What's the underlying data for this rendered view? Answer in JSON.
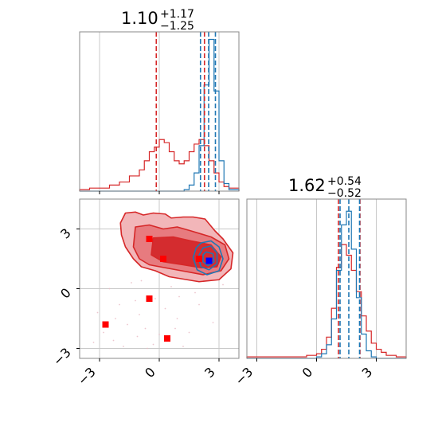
{
  "chart_data": [
    {
      "type": "histogram",
      "panel": "top-left marginal",
      "title": {
        "value": "1.10",
        "plus": "+1.17",
        "minus": "−1.25"
      },
      "xlim": [
        -4.0,
        4.0
      ],
      "grid": true,
      "x": [
        -4.0,
        -3.5,
        -3.0,
        -2.5,
        -2.0,
        -1.5,
        -1.0,
        -0.75,
        -0.5,
        -0.25,
        0.0,
        0.25,
        0.5,
        0.75,
        1.0,
        1.25,
        1.5,
        1.75,
        2.0,
        2.25,
        2.5,
        2.75,
        3.0,
        3.25,
        3.5,
        4.0
      ],
      "series": [
        {
          "color": "#d62728",
          "values": [
            0.01,
            0.02,
            0.02,
            0.04,
            0.06,
            0.1,
            0.14,
            0.2,
            0.26,
            0.29,
            0.34,
            0.32,
            0.26,
            0.2,
            0.18,
            0.2,
            0.26,
            0.31,
            0.34,
            0.3,
            0.2,
            0.12,
            0.06,
            0.03,
            0.02,
            0.0
          ]
        },
        {
          "color": "#1f77b4",
          "values": [
            0,
            0,
            0,
            0,
            0,
            0,
            0,
            0,
            0,
            0,
            0,
            0,
            0,
            0,
            0,
            0.01,
            0.04,
            0.12,
            0.3,
            0.7,
            1.0,
            0.66,
            0.2,
            0.05,
            0.01,
            0
          ]
        }
      ],
      "vlines": [
        {
          "x": -0.15,
          "color": "#d62728"
        },
        {
          "x": 2.27,
          "color": "#d62728"
        },
        {
          "x": 2.07,
          "color": "#1f77b4"
        },
        {
          "x": 2.48,
          "color": "#1f77b4"
        },
        {
          "x": 2.82,
          "color": "#1f77b4"
        }
      ]
    },
    {
      "type": "contour",
      "panel": "bottom-left joint",
      "xlim": [
        -4.0,
        4.0
      ],
      "ylim": [
        -3.5,
        4.5
      ],
      "xticks": [
        "−3",
        "0",
        "3"
      ],
      "yticks": [
        "−3",
        "0",
        "3"
      ],
      "grid": true,
      "red_contours": [
        {
          "level": "outer",
          "fill": "#f2b6b9",
          "points": [
            [
              -1.7,
              3.8
            ],
            [
              -1.2,
              3.85
            ],
            [
              -0.8,
              3.7
            ],
            [
              -0.3,
              3.8
            ],
            [
              0.3,
              3.75
            ],
            [
              0.6,
              3.55
            ],
            [
              1.2,
              3.6
            ],
            [
              1.7,
              3.6
            ],
            [
              2.3,
              3.5
            ],
            [
              2.8,
              2.9
            ],
            [
              3.2,
              2.5
            ],
            [
              3.7,
              1.8
            ],
            [
              3.6,
              1.0
            ],
            [
              3.0,
              0.45
            ],
            [
              2.0,
              0.35
            ],
            [
              1.4,
              0.45
            ],
            [
              0.5,
              0.6
            ],
            [
              -0.2,
              0.9
            ],
            [
              -0.9,
              1.1
            ],
            [
              -1.3,
              1.5
            ],
            [
              -1.7,
              2.1
            ],
            [
              -1.9,
              2.7
            ],
            [
              -1.95,
              3.3
            ]
          ]
        },
        {
          "level": "middle",
          "fill": "#e77b7f",
          "points": [
            [
              -1.2,
              3.1
            ],
            [
              -0.5,
              3.2
            ],
            [
              0.2,
              3.0
            ],
            [
              0.9,
              3.1
            ],
            [
              1.6,
              2.9
            ],
            [
              2.6,
              2.6
            ],
            [
              3.3,
              2.2
            ],
            [
              3.5,
              1.5
            ],
            [
              3.1,
              0.9
            ],
            [
              2.2,
              0.7
            ],
            [
              1.4,
              0.85
            ],
            [
              0.3,
              1.05
            ],
            [
              -0.5,
              1.2
            ],
            [
              -1.0,
              1.5
            ],
            [
              -1.3,
              2.1
            ]
          ]
        },
        {
          "level": "inner",
          "fill": "#d42c2f",
          "points": [
            [
              -0.3,
              2.55
            ],
            [
              0.7,
              2.6
            ],
            [
              1.6,
              2.4
            ],
            [
              2.6,
              2.2
            ],
            [
              3.1,
              1.6
            ],
            [
              2.9,
              1.1
            ],
            [
              2.1,
              1.05
            ],
            [
              1.2,
              1.2
            ],
            [
              0.2,
              1.35
            ],
            [
              -0.4,
              1.7
            ]
          ]
        }
      ],
      "blue_contours": [
        {
          "points": [
            [
              2.1,
              2.3
            ],
            [
              2.6,
              2.4
            ],
            [
              3.0,
              2.1
            ],
            [
              3.2,
              1.5
            ],
            [
              3.0,
              0.9
            ],
            [
              2.4,
              0.7
            ],
            [
              1.9,
              0.95
            ],
            [
              1.7,
              1.55
            ],
            [
              1.85,
              2.05
            ]
          ]
        },
        {
          "points": [
            [
              2.2,
              2.05
            ],
            [
              2.6,
              2.15
            ],
            [
              2.9,
              1.8
            ],
            [
              2.9,
              1.25
            ],
            [
              2.5,
              0.95
            ],
            [
              2.1,
              1.1
            ],
            [
              1.95,
              1.6
            ]
          ]
        },
        {
          "points": [
            [
              2.35,
              1.85
            ],
            [
              2.7,
              1.75
            ],
            [
              2.75,
              1.35
            ],
            [
              2.45,
              1.15
            ],
            [
              2.2,
              1.35
            ],
            [
              2.2,
              1.7
            ]
          ]
        }
      ],
      "markers": [
        {
          "x": -0.5,
          "y": 2.5,
          "color": "#ff0000"
        },
        {
          "x": 0.2,
          "y": 1.5,
          "color": "#ff0000"
        },
        {
          "x": 2.0,
          "y": 1.5,
          "color": "#ff0000"
        },
        {
          "x": -0.5,
          "y": -0.5,
          "color": "#ff0000"
        },
        {
          "x": -2.7,
          "y": -1.8,
          "color": "#ff0000"
        },
        {
          "x": 0.4,
          "y": -2.5,
          "color": "#ff0000"
        },
        {
          "x": 2.5,
          "y": 1.4,
          "color": "#0000ff"
        }
      ],
      "scatter_samples": [
        [
          -2.3,
          -2.6
        ],
        [
          -1.0,
          -1.3
        ],
        [
          -0.3,
          -2.8
        ],
        [
          0.9,
          -1.5
        ],
        [
          -1.4,
          0.3
        ],
        [
          -2.0,
          -0.8
        ],
        [
          1.0,
          -0.4
        ],
        [
          -0.7,
          -2.0
        ],
        [
          -2.8,
          -2.2
        ],
        [
          0.6,
          0.1
        ],
        [
          -1.6,
          -1.8
        ],
        [
          2.0,
          -0.8
        ],
        [
          -0.2,
          -0.5
        ],
        [
          1.5,
          -2.2
        ],
        [
          -3.1,
          -1.2
        ],
        [
          -0.9,
          0.4
        ],
        [
          0.3,
          -1.0
        ],
        [
          -1.8,
          -2.9
        ],
        [
          1.2,
          -2.9
        ],
        [
          -2.5,
          0.0
        ],
        [
          3.2,
          0.2
        ],
        [
          -1.2,
          -0.6
        ],
        [
          2.7,
          -1.7
        ],
        [
          -0.6,
          -3.0
        ],
        [
          0.8,
          -2.0
        ],
        [
          -2.2,
          -1.5
        ],
        [
          1.8,
          -0.2
        ],
        [
          -3.3,
          -2.7
        ],
        [
          0.0,
          -2.3
        ],
        [
          -1.1,
          -2.4
        ]
      ]
    },
    {
      "type": "histogram",
      "panel": "bottom-right marginal",
      "title": {
        "value": "1.62",
        "plus": "+0.54",
        "minus": "−0.52"
      },
      "xlim": [
        -3.5,
        4.5
      ],
      "xticks": [
        "−3",
        "0",
        "3"
      ],
      "grid": true,
      "x": [
        -3.5,
        -3.0,
        -2.5,
        -2.0,
        -1.5,
        -1.0,
        -0.5,
        0.0,
        0.25,
        0.5,
        0.75,
        1.0,
        1.25,
        1.5,
        1.75,
        2.0,
        2.25,
        2.5,
        2.75,
        3.0,
        3.25,
        3.5,
        4.0,
        4.5
      ],
      "series": [
        {
          "color": "#d62728",
          "values": [
            0.01,
            0.01,
            0.01,
            0.01,
            0.01,
            0.01,
            0.02,
            0.03,
            0.06,
            0.14,
            0.33,
            0.6,
            0.75,
            0.68,
            0.58,
            0.44,
            0.28,
            0.18,
            0.1,
            0.06,
            0.04,
            0.02,
            0.01,
            0.0
          ]
        },
        {
          "color": "#1f77b4",
          "values": [
            0,
            0,
            0,
            0,
            0,
            0,
            0,
            0.01,
            0.03,
            0.09,
            0.26,
            0.58,
            0.88,
            0.97,
            0.72,
            0.4,
            0.16,
            0.05,
            0.01,
            0,
            0,
            0,
            0,
            0
          ]
        }
      ],
      "vlines": [
        {
          "x": 1.1,
          "color": "#d62728"
        },
        {
          "x": 2.18,
          "color": "#d62728"
        },
        {
          "x": 1.18,
          "color": "#1f77b4"
        },
        {
          "x": 1.62,
          "color": "#1f77b4"
        },
        {
          "x": 2.16,
          "color": "#1f77b4"
        }
      ]
    }
  ]
}
